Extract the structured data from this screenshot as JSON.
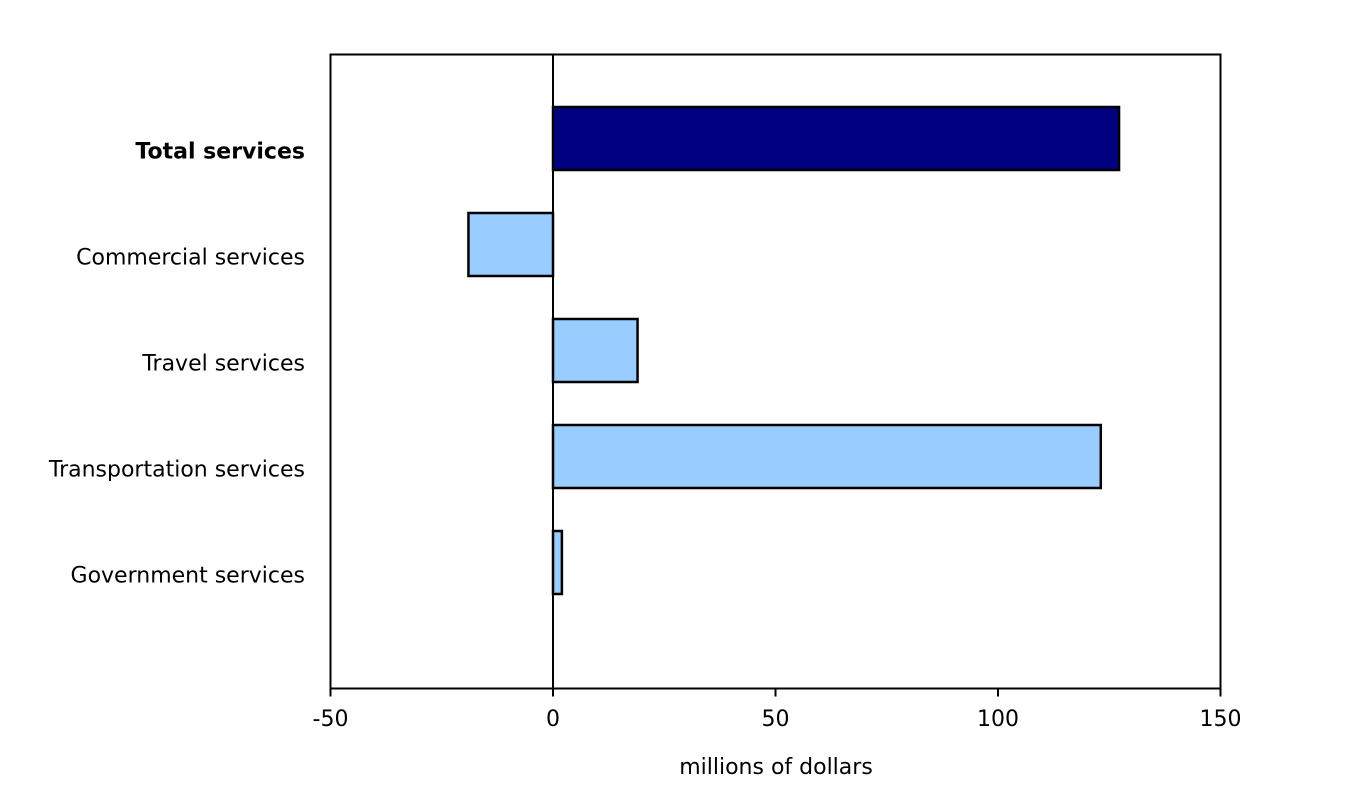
{
  "chart_data": {
    "type": "bar",
    "orientation": "horizontal",
    "categories": [
      "Total services",
      "Commercial services",
      "Travel services",
      "Transportation services",
      "Government services"
    ],
    "values": [
      127.2,
      -19.0,
      19.0,
      123.1,
      2.0
    ],
    "bold_categories": [
      "Total services"
    ],
    "colors": {
      "total": "#000080",
      "components": "#99CCFF",
      "outline": "#000000"
    },
    "title": "",
    "xlabel": "millions of dollars",
    "ylabel": "",
    "xlim": [
      -50,
      150
    ],
    "xticks": [
      -50,
      0,
      50,
      100,
      150
    ],
    "xtick_labels": [
      "-50",
      "0",
      "50",
      "100",
      "150"
    ],
    "grid": false,
    "legend": "none"
  }
}
